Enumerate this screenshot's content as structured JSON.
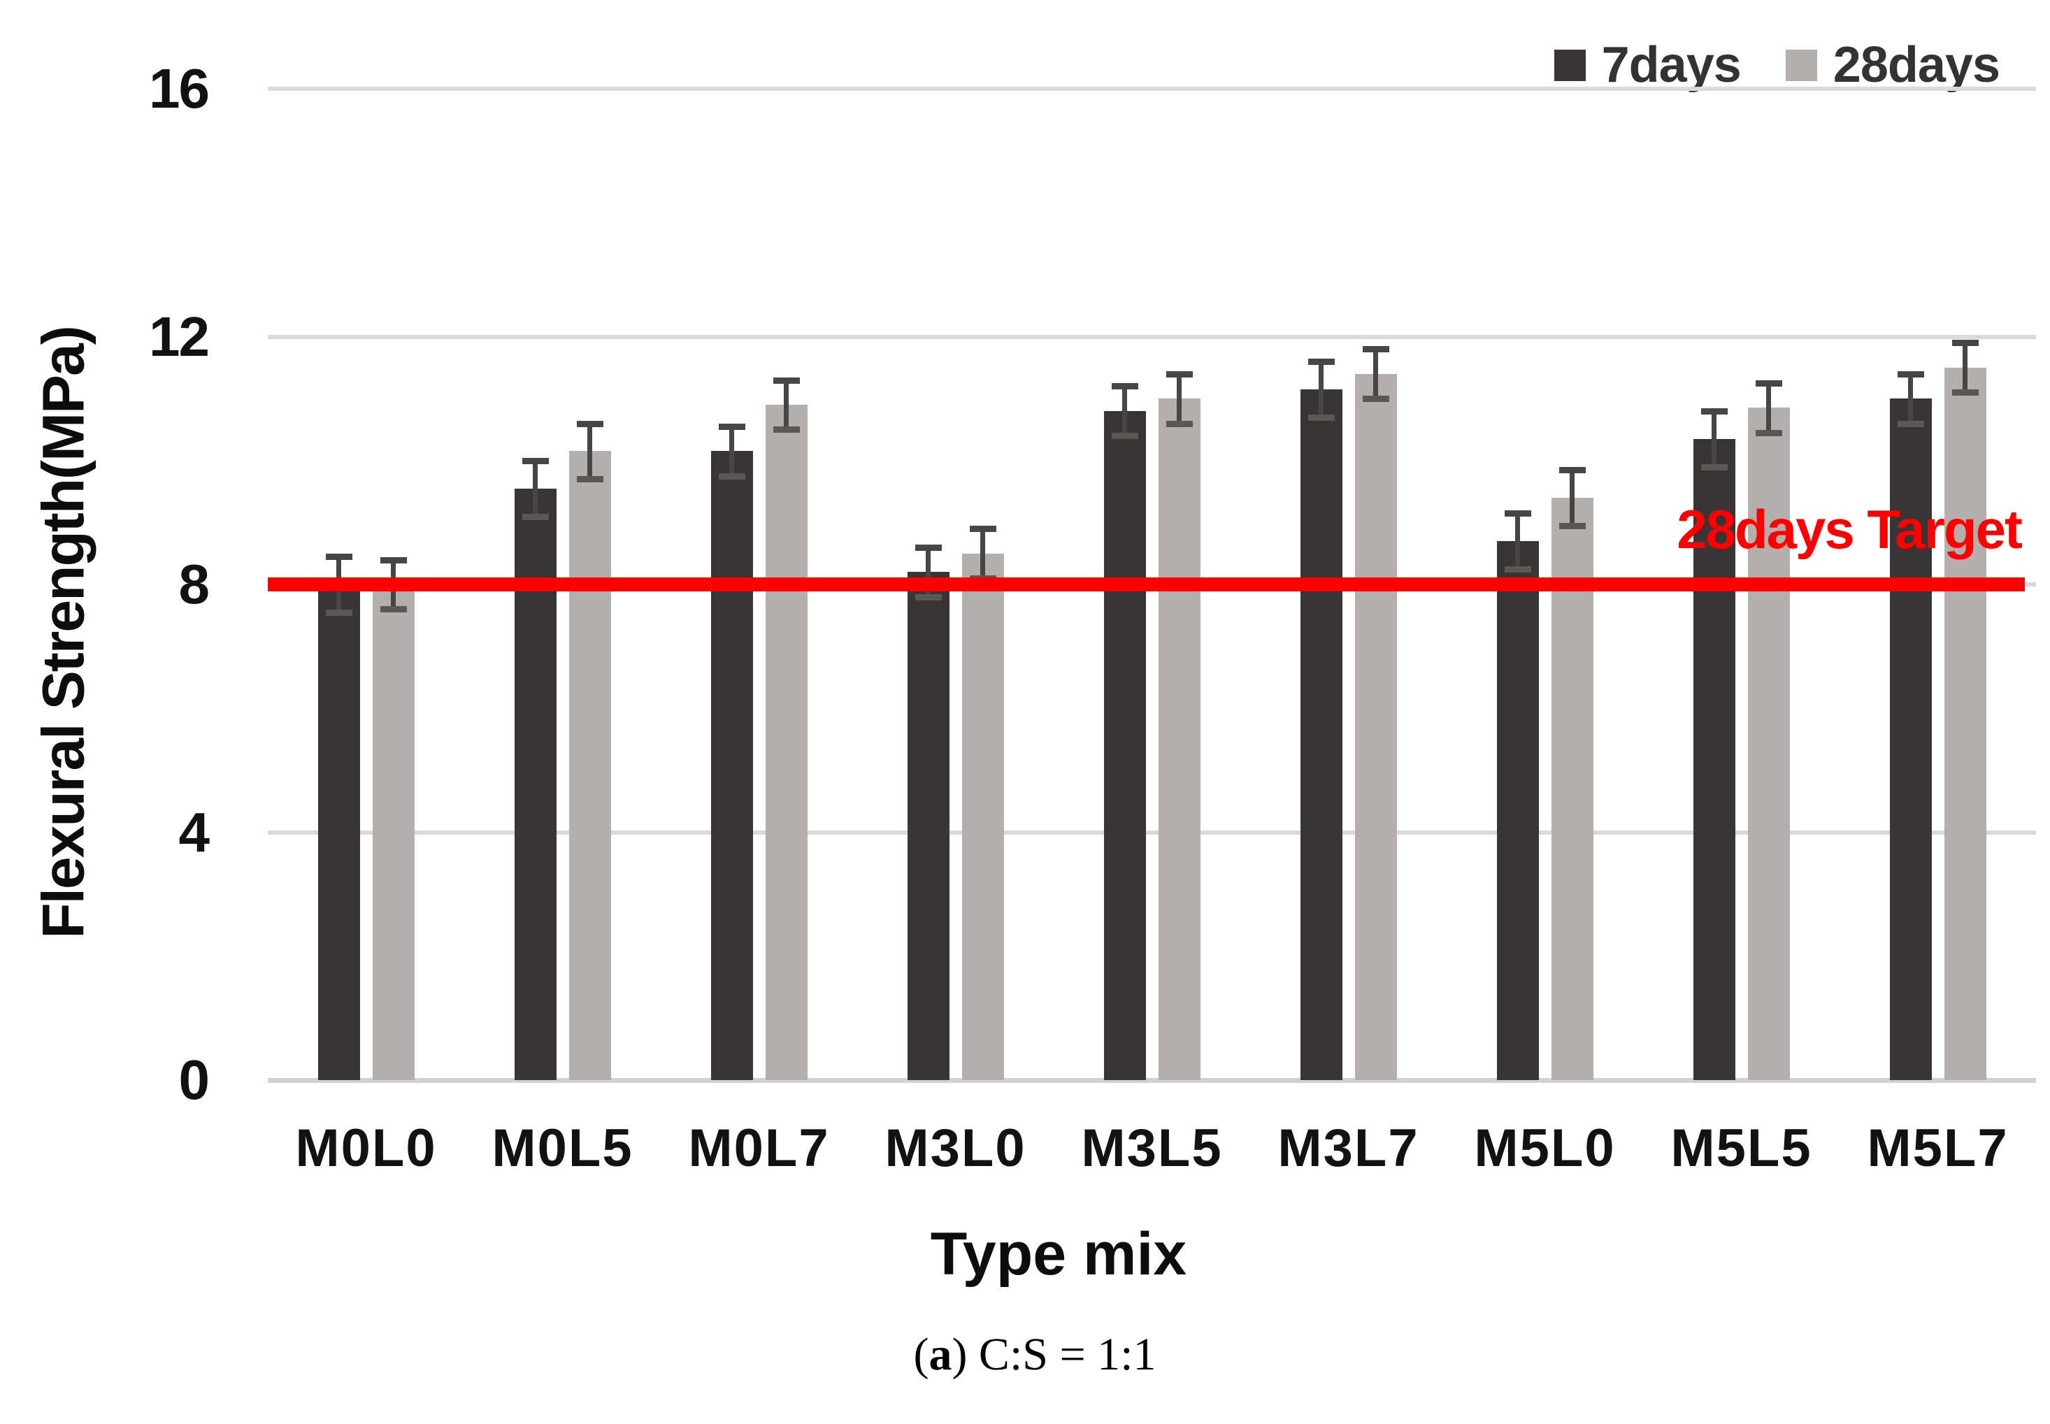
{
  "chart_data": {
    "type": "bar",
    "categories": [
      "M0L0",
      "M0L5",
      "M0L7",
      "M3L0",
      "M3L5",
      "M3L7",
      "M5L0",
      "M5L5",
      "M5L7"
    ],
    "series": [
      {
        "name": "7days",
        "color": "#3A3535",
        "values": [
          8.0,
          9.55,
          10.15,
          8.2,
          10.8,
          11.15,
          8.7,
          10.35,
          11.0
        ],
        "errors": [
          0.45,
          0.45,
          0.4,
          0.4,
          0.4,
          0.45,
          0.45,
          0.45,
          0.4
        ]
      },
      {
        "name": "28days",
        "color": "#B4AFAC",
        "values": [
          8.0,
          10.15,
          10.9,
          8.5,
          11.0,
          11.4,
          9.4,
          10.85,
          11.5
        ],
        "errors": [
          0.4,
          0.45,
          0.4,
          0.4,
          0.4,
          0.4,
          0.45,
          0.4,
          0.4
        ]
      }
    ],
    "title": "",
    "xlabel": "Type mix",
    "ylabel": "Flexural Strength(MPa)",
    "ylim": [
      0,
      16
    ],
    "yticks": [
      0,
      4,
      8,
      12,
      16
    ],
    "grid": true,
    "legend_position": "top-right",
    "target_line": {
      "value": 8,
      "label": "28days Target",
      "color": "#FF0000"
    },
    "error_bar_color": "#464646",
    "gridline_color": "#D9D9D9"
  },
  "caption": {
    "open": "(",
    "letter": "a",
    "rest": ") C:S = 1:1"
  }
}
